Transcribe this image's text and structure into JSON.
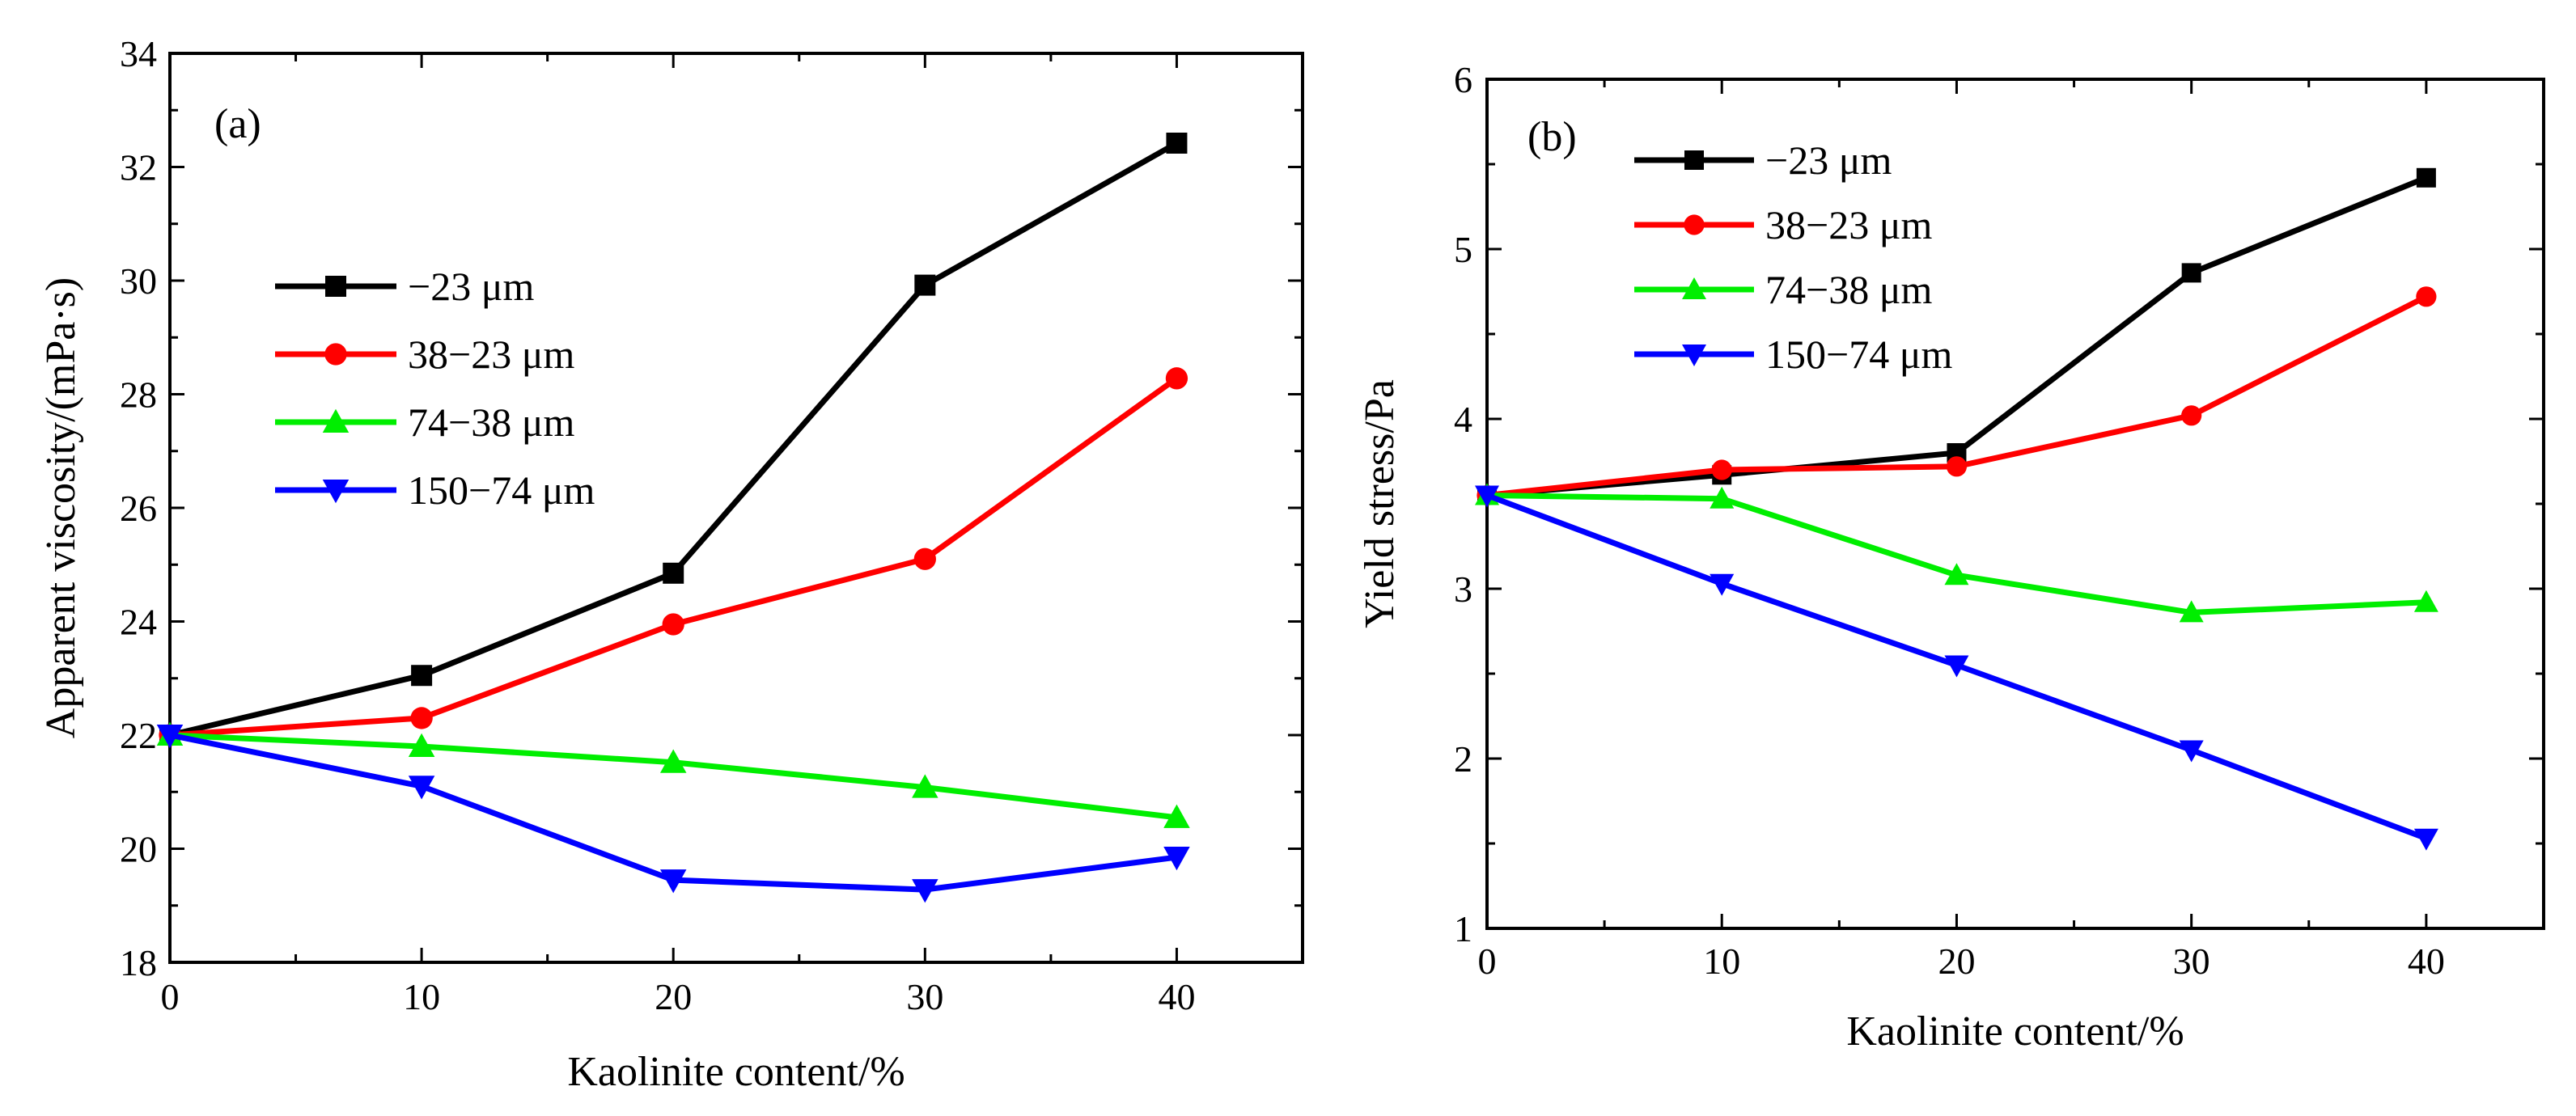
{
  "chart_data": [
    {
      "type": "line",
      "panel_label": "(a)",
      "xlabel": "Kaolinite content/%",
      "ylabel": "Apparent viscosity/(mPa·s)",
      "xlim": [
        0,
        45
      ],
      "ylim": [
        18,
        34
      ],
      "xticks": [
        0,
        10,
        20,
        30,
        40
      ],
      "xtick_labels": [
        "0",
        "10",
        "20",
        "30",
        "40"
      ],
      "yticks": [
        18,
        20,
        22,
        24,
        26,
        28,
        30,
        32,
        34
      ],
      "ytick_labels": [
        "18",
        "20",
        "22",
        "24",
        "26",
        "28",
        "30",
        "32",
        "34"
      ],
      "legend_position": "middle-left",
      "x": [
        0,
        10,
        20,
        30,
        40
      ],
      "series": [
        {
          "name": "−23 μm",
          "color": "#000000",
          "marker": "square",
          "values": [
            22.0,
            23.05,
            24.85,
            29.92,
            32.42
          ]
        },
        {
          "name": "38−23 μm",
          "color": "#ff0000",
          "marker": "circle",
          "values": [
            22.0,
            22.3,
            23.95,
            25.1,
            28.28
          ]
        },
        {
          "name": "74−38 μm",
          "color": "#00ee00",
          "marker": "triangle-up",
          "values": [
            22.0,
            21.8,
            21.52,
            21.08,
            20.55
          ]
        },
        {
          "name": "150−74 μm",
          "color": "#0000ff",
          "marker": "triangle-down",
          "values": [
            22.0,
            21.1,
            19.45,
            19.28,
            19.85
          ]
        }
      ]
    },
    {
      "type": "line",
      "panel_label": "(b)",
      "xlabel": "Kaolinite content/%",
      "ylabel": "Yield stress/Pa",
      "xlim": [
        0,
        45
      ],
      "ylim": [
        1,
        6
      ],
      "xticks": [
        0,
        10,
        20,
        30,
        40
      ],
      "xtick_labels": [
        "0",
        "10",
        "20",
        "30",
        "40"
      ],
      "yticks": [
        1,
        2,
        3,
        4,
        5,
        6
      ],
      "ytick_labels": [
        "1",
        "2",
        "3",
        "4",
        "5",
        "6"
      ],
      "legend_position": "top-left",
      "x": [
        0,
        10,
        20,
        30,
        40
      ],
      "series": [
        {
          "name": "−23 μm",
          "color": "#000000",
          "marker": "square",
          "values": [
            3.55,
            3.67,
            3.8,
            4.86,
            5.42
          ]
        },
        {
          "name": "38−23 μm",
          "color": "#ff0000",
          "marker": "circle",
          "values": [
            3.55,
            3.7,
            3.72,
            4.02,
            4.72
          ]
        },
        {
          "name": "74−38 μm",
          "color": "#00ee00",
          "marker": "triangle-up",
          "values": [
            3.55,
            3.53,
            3.08,
            2.86,
            2.92
          ]
        },
        {
          "name": "150−74 μm",
          "color": "#0000ff",
          "marker": "triangle-down",
          "values": [
            3.55,
            3.03,
            2.55,
            2.05,
            1.53
          ]
        }
      ]
    }
  ]
}
